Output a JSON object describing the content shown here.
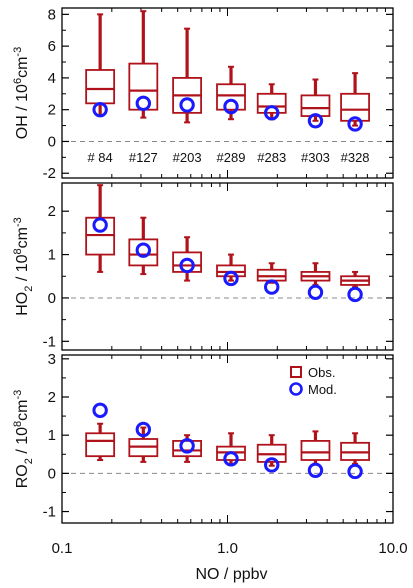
{
  "chart_data": {
    "type": "box",
    "x": {
      "label": "NO / ppbv",
      "scale": "log",
      "range": [
        0.1,
        10.0
      ],
      "ticks": [
        0.1,
        1.0,
        10.0
      ],
      "tick_labels": [
        "0.1",
        "1.0",
        "10.0"
      ],
      "bins": [
        0.17,
        0.31,
        0.57,
        1.05,
        1.85,
        3.4,
        5.9
      ]
    },
    "colors": {
      "obs": "#b0121b",
      "mod": "#1a1aff",
      "zero_line": "#888888",
      "frame": "#000000"
    },
    "legend": {
      "placement": "top-right of bottom panel",
      "entries": [
        {
          "label": "Obs.",
          "marker": "square",
          "color": "#b0121b"
        },
        {
          "label": "Mod.",
          "marker": "circle",
          "color": "#1a1aff"
        }
      ]
    },
    "panels": [
      {
        "id": "oh",
        "ylabel": [
          "OH / 10",
          "6",
          "cm",
          "-3"
        ],
        "ylim": [
          -2.3,
          8.4
        ],
        "yticks": [
          -2,
          0,
          2,
          4,
          6,
          8
        ],
        "counts": [
          "# 84",
          "#127",
          "#203",
          "#289",
          "#283",
          "#303",
          "#328"
        ],
        "obs": [
          {
            "w_lo": 1.6,
            "q1": 2.4,
            "median": 3.3,
            "q3": 4.5,
            "w_hi": 8.0
          },
          {
            "w_lo": 1.5,
            "q1": 2.0,
            "median": 3.2,
            "q3": 4.9,
            "w_hi": 8.2
          },
          {
            "w_lo": 1.2,
            "q1": 1.8,
            "median": 2.9,
            "q3": 4.0,
            "w_hi": 7.1
          },
          {
            "w_lo": 1.4,
            "q1": 2.0,
            "median": 2.9,
            "q3": 3.6,
            "w_hi": 4.7
          },
          {
            "w_lo": 1.4,
            "q1": 1.8,
            "median": 2.2,
            "q3": 3.0,
            "w_hi": 3.6
          },
          {
            "w_lo": 1.3,
            "q1": 1.6,
            "median": 2.1,
            "q3": 2.9,
            "w_hi": 3.9
          },
          {
            "w_lo": 1.0,
            "q1": 1.3,
            "median": 2.0,
            "q3": 3.0,
            "w_hi": 4.3
          }
        ],
        "mod": [
          2.0,
          2.4,
          2.3,
          2.2,
          1.8,
          1.3,
          1.1
        ]
      },
      {
        "id": "ho2",
        "ylabel": [
          "HO",
          "2",
          " / 10",
          "8",
          "cm",
          "-3"
        ],
        "ylim": [
          -1.2,
          2.65
        ],
        "yticks": [
          -1,
          0,
          1,
          2
        ],
        "obs": [
          {
            "w_lo": 0.6,
            "q1": 1.0,
            "median": 1.45,
            "q3": 1.85,
            "w_hi": 2.6
          },
          {
            "w_lo": 0.55,
            "q1": 0.75,
            "median": 1.0,
            "q3": 1.35,
            "w_hi": 1.85
          },
          {
            "w_lo": 0.4,
            "q1": 0.6,
            "median": 0.75,
            "q3": 1.05,
            "w_hi": 1.4
          },
          {
            "w_lo": 0.4,
            "q1": 0.5,
            "median": 0.6,
            "q3": 0.75,
            "w_hi": 1.0
          },
          {
            "w_lo": 0.35,
            "q1": 0.4,
            "median": 0.5,
            "q3": 0.65,
            "w_hi": 0.8
          },
          {
            "w_lo": 0.3,
            "q1": 0.4,
            "median": 0.5,
            "q3": 0.6,
            "w_hi": 0.8
          },
          {
            "w_lo": 0.25,
            "q1": 0.3,
            "median": 0.4,
            "q3": 0.5,
            "w_hi": 0.6
          }
        ],
        "mod": [
          1.68,
          1.1,
          0.75,
          0.45,
          0.25,
          0.13,
          0.08
        ]
      },
      {
        "id": "ro2",
        "ylabel": [
          "RO",
          "2",
          " / 10",
          "8",
          "cm",
          "-3"
        ],
        "ylim": [
          -1.3,
          3.1
        ],
        "yticks": [
          -1,
          0,
          1,
          2,
          3
        ],
        "obs": [
          {
            "w_lo": 0.35,
            "q1": 0.45,
            "median": 0.85,
            "q3": 1.05,
            "w_hi": 1.3
          },
          {
            "w_lo": 0.3,
            "q1": 0.45,
            "median": 0.7,
            "q3": 0.9,
            "w_hi": 1.2
          },
          {
            "w_lo": 0.3,
            "q1": 0.45,
            "median": 0.6,
            "q3": 0.85,
            "w_hi": 1.0
          },
          {
            "w_lo": 0.25,
            "q1": 0.35,
            "median": 0.55,
            "q3": 0.7,
            "w_hi": 1.05
          },
          {
            "w_lo": 0.2,
            "q1": 0.3,
            "median": 0.5,
            "q3": 0.75,
            "w_hi": 1.0
          },
          {
            "w_lo": 0.25,
            "q1": 0.35,
            "median": 0.55,
            "q3": 0.85,
            "w_hi": 1.1
          },
          {
            "w_lo": 0.25,
            "q1": 0.35,
            "median": 0.55,
            "q3": 0.8,
            "w_hi": 1.05
          }
        ],
        "mod": [
          1.65,
          1.15,
          0.72,
          0.38,
          0.22,
          0.08,
          0.05
        ]
      }
    ]
  }
}
